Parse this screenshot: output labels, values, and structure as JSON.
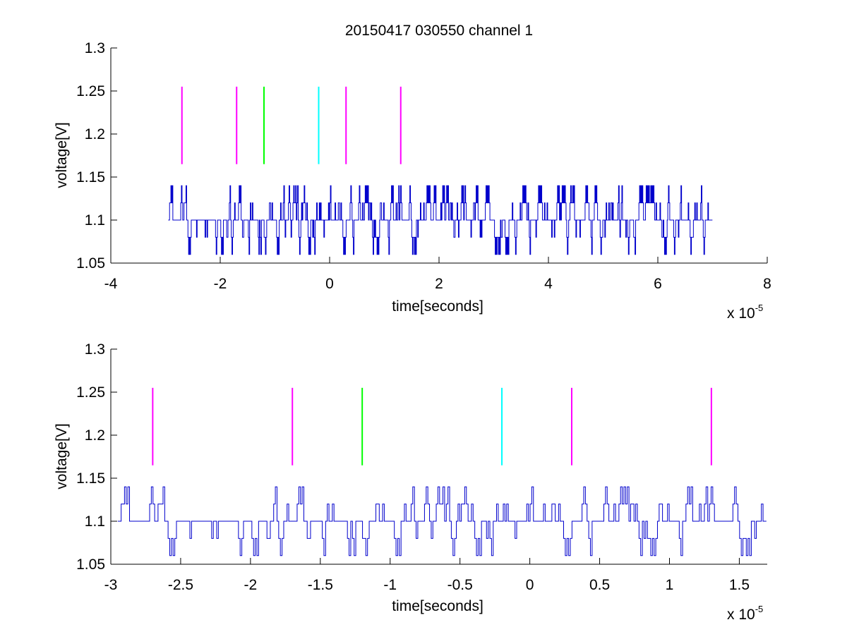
{
  "figure": {
    "title": "20150417 030550 channel 1"
  },
  "colors": {
    "signal": "#0000cc",
    "magenta": "#ff00ff",
    "green": "#00ff00",
    "cyan": "#00ffff",
    "axis": "#000000"
  },
  "chart_data": [
    {
      "type": "line",
      "title": "20150417 030550 channel 1",
      "xlabel": "time[seconds]",
      "ylabel": "voltage[V]",
      "x_exponent_label": "x 10",
      "x_exponent": "-5",
      "xlim": [
        -4,
        8
      ],
      "ylim": [
        1.05,
        1.3
      ],
      "xticks": [
        -4,
        -2,
        0,
        2,
        4,
        6,
        8
      ],
      "xtick_labels": [
        "-4",
        "-2",
        "0",
        "2",
        "4",
        "6",
        "8"
      ],
      "yticks": [
        1.05,
        1.1,
        1.15,
        1.2,
        1.25,
        1.3
      ],
      "ytick_labels": [
        "1.05",
        "1.1",
        "1.15",
        "1.2",
        "1.25",
        "1.3"
      ],
      "grid": false,
      "series": [
        {
          "signal": {
            "x_start": -2.95,
            "x_end": 7.0,
            "levels": [
              1.06,
              1.08,
              1.1,
              1.12,
              1.14
            ],
            "baseline": 1.1
          }
        }
      ],
      "markers": [
        {
          "x": -2.7,
          "y_low": 1.165,
          "y_high": 1.255,
          "color": "magenta"
        },
        {
          "x": -1.7,
          "y_low": 1.165,
          "y_high": 1.255,
          "color": "magenta"
        },
        {
          "x": -1.2,
          "y_low": 1.165,
          "y_high": 1.255,
          "color": "green"
        },
        {
          "x": -0.2,
          "y_low": 1.165,
          "y_high": 1.255,
          "color": "cyan"
        },
        {
          "x": 0.3,
          "y_low": 1.165,
          "y_high": 1.255,
          "color": "magenta"
        },
        {
          "x": 1.3,
          "y_low": 1.165,
          "y_high": 1.255,
          "color": "magenta"
        }
      ]
    },
    {
      "type": "line",
      "xlabel": "time[seconds]",
      "ylabel": "voltage[V]",
      "x_exponent_label": "x 10",
      "x_exponent": "-5",
      "xlim": [
        -3.0,
        1.7
      ],
      "ylim": [
        1.05,
        1.3
      ],
      "xticks": [
        -3,
        -2.5,
        -2,
        -1.5,
        -1,
        -0.5,
        0,
        0.5,
        1,
        1.5
      ],
      "xtick_labels": [
        "-3",
        "-2.5",
        "-2",
        "-1.5",
        "-1",
        "-0.5",
        "0",
        "0.5",
        "1",
        "1.5"
      ],
      "yticks": [
        1.05,
        1.1,
        1.15,
        1.2,
        1.25,
        1.3
      ],
      "ytick_labels": [
        "1.05",
        "1.1",
        "1.15",
        "1.2",
        "1.25",
        "1.3"
      ],
      "grid": false,
      "series": [
        {
          "signal": {
            "x_start": -2.95,
            "x_end": 1.7,
            "levels": [
              1.06,
              1.08,
              1.1,
              1.12,
              1.14
            ],
            "baseline": 1.1
          }
        }
      ],
      "markers": [
        {
          "x": -2.7,
          "y_low": 1.165,
          "y_high": 1.255,
          "color": "magenta"
        },
        {
          "x": -1.7,
          "y_low": 1.165,
          "y_high": 1.255,
          "color": "magenta"
        },
        {
          "x": -1.2,
          "y_low": 1.165,
          "y_high": 1.255,
          "color": "green"
        },
        {
          "x": -0.2,
          "y_low": 1.165,
          "y_high": 1.255,
          "color": "cyan"
        },
        {
          "x": 0.3,
          "y_low": 1.165,
          "y_high": 1.255,
          "color": "magenta"
        },
        {
          "x": 1.3,
          "y_low": 1.165,
          "y_high": 1.255,
          "color": "magenta"
        }
      ]
    }
  ]
}
